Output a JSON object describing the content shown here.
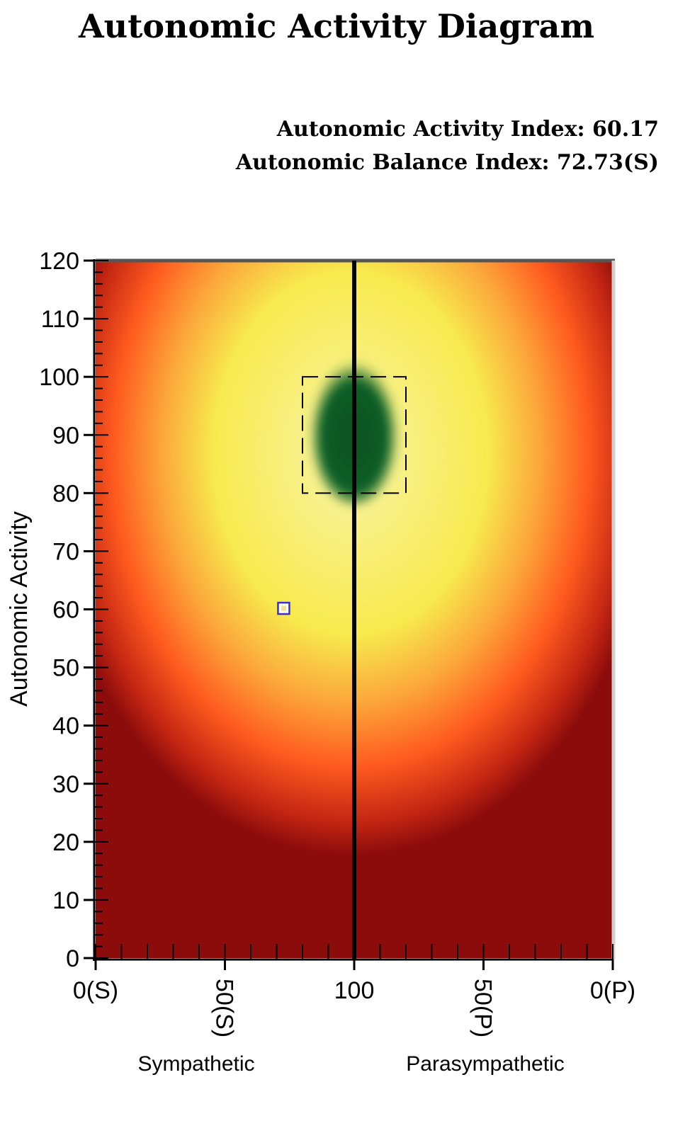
{
  "header": {
    "title": "Autonomic Activity Diagram",
    "activity_index_text": "Autonomic Activity Index: 60.17",
    "balance_index_text": "Autonomic Balance Index: 72.73(S)"
  },
  "chart_data": {
    "type": "heatmap",
    "title": "Autonomic Activity Diagram",
    "ylabel": "Autonomic Activity",
    "xlabel": "",
    "ylim": [
      0,
      120
    ],
    "y_ticks": [
      "0",
      "10",
      "20",
      "30",
      "40",
      "50",
      "60",
      "70",
      "80",
      "90",
      "100",
      "110",
      "120"
    ],
    "x_ticks": [
      {
        "label": "0(S)",
        "balance": 0,
        "rotated": false
      },
      {
        "label": "50(S)",
        "balance": 50,
        "rotated": true
      },
      {
        "label": "100",
        "balance": 100,
        "rotated": false
      },
      {
        "label": "50(P)",
        "balance": 150,
        "rotated": true
      },
      {
        "label": "0(P)",
        "balance": 200,
        "rotated": false
      }
    ],
    "xlim": [
      0,
      200
    ],
    "region_labels": {
      "left": "Sympathetic",
      "right": "Parasympathetic"
    },
    "center_line": 100,
    "normal_range_box": {
      "x": [
        80,
        120
      ],
      "y": [
        80,
        100
      ]
    },
    "point": {
      "balance": 72.73,
      "activity": 60.17,
      "side": "S"
    },
    "colors": {
      "dark_red": "#8c0c0c",
      "orange": "#ff5a1f",
      "yellow": "#f7ea4e",
      "green": "#0b5e26",
      "point_border": "#3b2fd0",
      "point_fill": "#ffffff"
    },
    "grid": false
  }
}
